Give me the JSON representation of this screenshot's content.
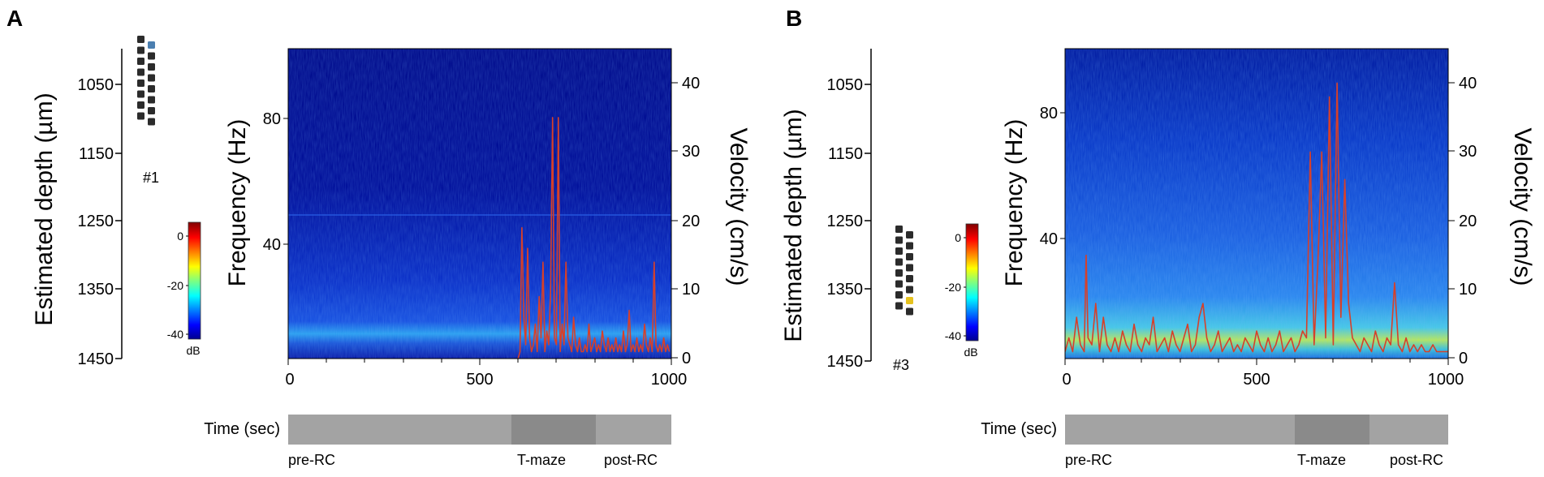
{
  "figure_colors": {
    "spectrogram_bg": "#000b8c",
    "velocity_trace": "#d6402a",
    "epoch_bar_light": "#a3a3a3",
    "epoch_bar_dark": "#8a8a8a",
    "electrode_site": "#2b2b2b",
    "highlight_A": "#4b7fb0",
    "highlight_B": "#e6c21e"
  },
  "panels": [
    {
      "letter": "A",
      "depth_axis": {
        "title": "Estimated depth (µm)",
        "ticks": [
          "1050",
          "1150",
          "1250",
          "1350",
          "1450"
        ]
      },
      "probe": {
        "label": "#1",
        "highlight_site": 1
      },
      "colorbar": {
        "ticks": [
          "0",
          "-20",
          "-40"
        ],
        "unit": "dB"
      },
      "spectrogram": {
        "ylabel": "Frequency (Hz)",
        "y_ticks": [
          "80",
          "40"
        ],
        "y2label": "Velocity (cm/s)",
        "y2_ticks": [
          "40",
          "30",
          "20",
          "10",
          "0"
        ],
        "x_ticks": [
          "0",
          "500",
          "1000"
        ]
      },
      "time_bar": {
        "label": "Time (sec)",
        "epochs": [
          "pre-RC",
          "T-maze",
          "post-RC"
        ]
      }
    },
    {
      "letter": "B",
      "depth_axis": {
        "title": "Estimated depth (µm)",
        "ticks": [
          "1050",
          "1150",
          "1250",
          "1350",
          "1450"
        ]
      },
      "probe": {
        "label": "#3",
        "highlight_site": 13
      },
      "colorbar": {
        "ticks": [
          "0",
          "-20",
          "-40"
        ],
        "unit": "dB"
      },
      "spectrogram": {
        "ylabel": "Frequency (Hz)",
        "y_ticks": [
          "80",
          "40"
        ],
        "y2label": "Velocity (cm/s)",
        "y2_ticks": [
          "40",
          "30",
          "20",
          "10",
          "0"
        ],
        "x_ticks": [
          "0",
          "500",
          "1000"
        ]
      },
      "time_bar": {
        "label": "Time (sec)",
        "epochs": [
          "pre-RC",
          "T-maze",
          "post-RC"
        ]
      }
    }
  ],
  "chart_data": [
    {
      "type": "heatmap",
      "title": "",
      "xlabel": "Time (sec)",
      "ylabel": "Frequency (Hz)",
      "y2label": "Velocity (cm/s)",
      "xlim": [
        0,
        1000
      ],
      "ylim": [
        0,
        100
      ],
      "y2lim": [
        0,
        45
      ],
      "clim": [
        -45,
        2
      ],
      "colorbar_unit": "dB",
      "epochs": [
        {
          "name": "pre-RC",
          "start": 0,
          "end": 580
        },
        {
          "name": "T-maze",
          "start": 580,
          "end": 800
        },
        {
          "name": "post-RC",
          "start": 800,
          "end": 1000
        }
      ],
      "velocity": {
        "x": [
          600,
          605,
          610,
          615,
          620,
          625,
          630,
          635,
          640,
          645,
          650,
          655,
          660,
          665,
          670,
          675,
          680,
          685,
          690,
          695,
          700,
          705,
          710,
          715,
          720,
          725,
          730,
          735,
          740,
          745,
          750,
          755,
          760,
          765,
          770,
          775,
          780,
          785,
          790,
          795,
          800,
          805,
          810,
          815,
          820,
          825,
          830,
          835,
          840,
          845,
          850,
          855,
          860,
          865,
          870,
          875,
          880,
          885,
          890,
          895,
          900,
          905,
          910,
          915,
          920,
          925,
          930,
          935,
          940,
          945,
          950,
          955,
          960,
          965,
          970,
          975,
          980,
          985,
          990,
          995
        ],
        "y": [
          0,
          1,
          19,
          6,
          2,
          16,
          3,
          1,
          2,
          5,
          1,
          9,
          3,
          14,
          1,
          4,
          2,
          10,
          35,
          3,
          2,
          35,
          1,
          5,
          2,
          14,
          3,
          2,
          1,
          6,
          2,
          1,
          3,
          1,
          1,
          2,
          1,
          5,
          1,
          2,
          3,
          1,
          2,
          1,
          4,
          2,
          1,
          3,
          1,
          2,
          1,
          3,
          1,
          2,
          1,
          4,
          1,
          2,
          7,
          1,
          2,
          1,
          3,
          1,
          2,
          1,
          5,
          2,
          1,
          3,
          1,
          14,
          2,
          1,
          2,
          1,
          3,
          1,
          2,
          1
        ]
      }
    },
    {
      "type": "heatmap",
      "title": "",
      "xlabel": "Time (sec)",
      "ylabel": "Frequency (Hz)",
      "y2label": "Velocity (cm/s)",
      "xlim": [
        0,
        1000
      ],
      "ylim": [
        0,
        100
      ],
      "y2lim": [
        0,
        45
      ],
      "clim": [
        -45,
        2
      ],
      "colorbar_unit": "dB",
      "epochs": [
        {
          "name": "pre-RC",
          "start": 0,
          "end": 590
        },
        {
          "name": "T-maze",
          "start": 590,
          "end": 785
        },
        {
          "name": "post-RC",
          "start": 785,
          "end": 1000
        }
      ],
      "velocity": {
        "x": [
          0,
          10,
          20,
          30,
          40,
          50,
          55,
          60,
          70,
          80,
          90,
          100,
          110,
          120,
          130,
          140,
          150,
          160,
          170,
          180,
          190,
          200,
          210,
          220,
          230,
          240,
          250,
          260,
          270,
          280,
          290,
          300,
          310,
          320,
          330,
          340,
          350,
          360,
          370,
          380,
          390,
          400,
          410,
          420,
          430,
          440,
          450,
          460,
          470,
          480,
          490,
          500,
          510,
          520,
          530,
          540,
          550,
          560,
          570,
          580,
          590,
          600,
          610,
          620,
          630,
          640,
          650,
          660,
          670,
          680,
          690,
          700,
          710,
          720,
          730,
          740,
          750,
          760,
          770,
          780,
          790,
          800,
          810,
          820,
          830,
          840,
          850,
          860,
          870,
          880,
          890,
          900,
          910,
          920,
          930,
          940,
          950,
          960,
          970,
          980,
          990,
          1000
        ],
        "y": [
          1,
          3,
          1,
          6,
          2,
          1,
          15,
          3,
          2,
          8,
          1,
          6,
          2,
          1,
          3,
          1,
          4,
          2,
          1,
          5,
          2,
          1,
          3,
          2,
          6,
          1,
          2,
          3,
          1,
          4,
          2,
          1,
          3,
          5,
          1,
          2,
          6,
          8,
          3,
          1,
          2,
          4,
          1,
          2,
          3,
          1,
          2,
          1,
          3,
          2,
          1,
          4,
          2,
          1,
          3,
          1,
          2,
          4,
          1,
          2,
          3,
          1,
          2,
          4,
          3,
          30,
          2,
          14,
          30,
          3,
          38,
          2,
          40,
          6,
          26,
          8,
          3,
          2,
          1,
          3,
          2,
          1,
          4,
          2,
          1,
          3,
          2,
          11,
          2,
          1,
          3,
          1,
          2,
          1,
          2,
          1,
          1,
          2,
          1,
          1,
          1,
          1
        ]
      }
    }
  ]
}
